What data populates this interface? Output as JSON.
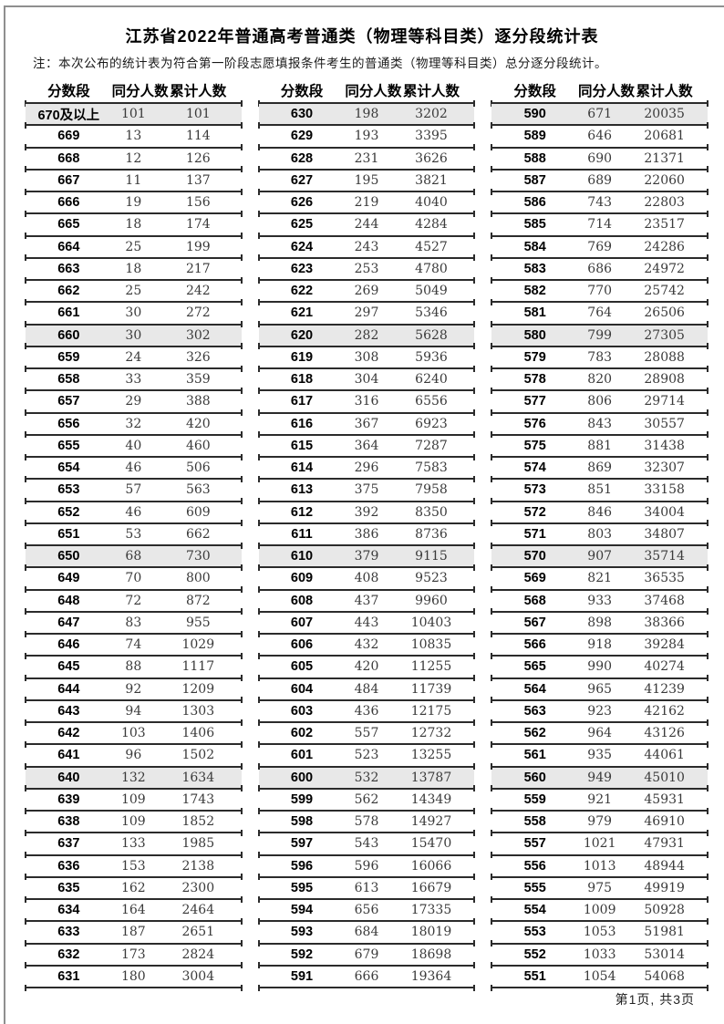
{
  "page": {
    "title": "江苏省2022年普通高考普通类（物理等科目类）逐分段统计表",
    "note": "注：本次公布的统计表为符合第一阶段志愿填报条件考生的普通类（物理等科目类）总分逐分段统计。",
    "footer": "第1页, 共3页"
  },
  "columns": [
    "分数段",
    "同分人数",
    "累计人数"
  ],
  "tables": [
    {
      "rows": [
        [
          "670及以上",
          "101",
          "101"
        ],
        [
          "669",
          "13",
          "114"
        ],
        [
          "668",
          "12",
          "126"
        ],
        [
          "667",
          "11",
          "137"
        ],
        [
          "666",
          "19",
          "156"
        ],
        [
          "665",
          "18",
          "174"
        ],
        [
          "664",
          "25",
          "199"
        ],
        [
          "663",
          "18",
          "217"
        ],
        [
          "662",
          "25",
          "242"
        ],
        [
          "661",
          "30",
          "272"
        ],
        [
          "660",
          "30",
          "302"
        ],
        [
          "659",
          "24",
          "326"
        ],
        [
          "658",
          "33",
          "359"
        ],
        [
          "657",
          "29",
          "388"
        ],
        [
          "656",
          "32",
          "420"
        ],
        [
          "655",
          "40",
          "460"
        ],
        [
          "654",
          "46",
          "506"
        ],
        [
          "653",
          "57",
          "563"
        ],
        [
          "652",
          "46",
          "609"
        ],
        [
          "651",
          "53",
          "662"
        ],
        [
          "650",
          "68",
          "730"
        ],
        [
          "649",
          "70",
          "800"
        ],
        [
          "648",
          "72",
          "872"
        ],
        [
          "647",
          "83",
          "955"
        ],
        [
          "646",
          "74",
          "1029"
        ],
        [
          "645",
          "88",
          "1117"
        ],
        [
          "644",
          "92",
          "1209"
        ],
        [
          "643",
          "94",
          "1303"
        ],
        [
          "642",
          "103",
          "1406"
        ],
        [
          "641",
          "96",
          "1502"
        ],
        [
          "640",
          "132",
          "1634"
        ],
        [
          "639",
          "109",
          "1743"
        ],
        [
          "638",
          "109",
          "1852"
        ],
        [
          "637",
          "133",
          "1985"
        ],
        [
          "636",
          "153",
          "2138"
        ],
        [
          "635",
          "162",
          "2300"
        ],
        [
          "634",
          "164",
          "2464"
        ],
        [
          "633",
          "187",
          "2651"
        ],
        [
          "632",
          "173",
          "2824"
        ],
        [
          "631",
          "180",
          "3004"
        ]
      ]
    },
    {
      "rows": [
        [
          "630",
          "198",
          "3202"
        ],
        [
          "629",
          "193",
          "3395"
        ],
        [
          "628",
          "231",
          "3626"
        ],
        [
          "627",
          "195",
          "3821"
        ],
        [
          "626",
          "219",
          "4040"
        ],
        [
          "625",
          "244",
          "4284"
        ],
        [
          "624",
          "243",
          "4527"
        ],
        [
          "623",
          "253",
          "4780"
        ],
        [
          "622",
          "269",
          "5049"
        ],
        [
          "621",
          "297",
          "5346"
        ],
        [
          "620",
          "282",
          "5628"
        ],
        [
          "619",
          "308",
          "5936"
        ],
        [
          "618",
          "304",
          "6240"
        ],
        [
          "617",
          "316",
          "6556"
        ],
        [
          "616",
          "367",
          "6923"
        ],
        [
          "615",
          "364",
          "7287"
        ],
        [
          "614",
          "296",
          "7583"
        ],
        [
          "613",
          "375",
          "7958"
        ],
        [
          "612",
          "392",
          "8350"
        ],
        [
          "611",
          "386",
          "8736"
        ],
        [
          "610",
          "379",
          "9115"
        ],
        [
          "609",
          "408",
          "9523"
        ],
        [
          "608",
          "437",
          "9960"
        ],
        [
          "607",
          "443",
          "10403"
        ],
        [
          "606",
          "432",
          "10835"
        ],
        [
          "605",
          "420",
          "11255"
        ],
        [
          "604",
          "484",
          "11739"
        ],
        [
          "603",
          "436",
          "12175"
        ],
        [
          "602",
          "557",
          "12732"
        ],
        [
          "601",
          "523",
          "13255"
        ],
        [
          "600",
          "532",
          "13787"
        ],
        [
          "599",
          "562",
          "14349"
        ],
        [
          "598",
          "578",
          "14927"
        ],
        [
          "597",
          "543",
          "15470"
        ],
        [
          "596",
          "596",
          "16066"
        ],
        [
          "595",
          "613",
          "16679"
        ],
        [
          "594",
          "656",
          "17335"
        ],
        [
          "593",
          "684",
          "18019"
        ],
        [
          "592",
          "679",
          "18698"
        ],
        [
          "591",
          "666",
          "19364"
        ]
      ]
    },
    {
      "rows": [
        [
          "590",
          "671",
          "20035"
        ],
        [
          "589",
          "646",
          "20681"
        ],
        [
          "588",
          "690",
          "21371"
        ],
        [
          "587",
          "689",
          "22060"
        ],
        [
          "586",
          "743",
          "22803"
        ],
        [
          "585",
          "714",
          "23517"
        ],
        [
          "584",
          "769",
          "24286"
        ],
        [
          "583",
          "686",
          "24972"
        ],
        [
          "582",
          "770",
          "25742"
        ],
        [
          "581",
          "764",
          "26506"
        ],
        [
          "580",
          "799",
          "27305"
        ],
        [
          "579",
          "783",
          "28088"
        ],
        [
          "578",
          "820",
          "28908"
        ],
        [
          "577",
          "806",
          "29714"
        ],
        [
          "576",
          "843",
          "30557"
        ],
        [
          "575",
          "881",
          "31438"
        ],
        [
          "574",
          "869",
          "32307"
        ],
        [
          "573",
          "851",
          "33158"
        ],
        [
          "572",
          "846",
          "34004"
        ],
        [
          "571",
          "803",
          "34807"
        ],
        [
          "570",
          "907",
          "35714"
        ],
        [
          "569",
          "821",
          "36535"
        ],
        [
          "568",
          "933",
          "37468"
        ],
        [
          "567",
          "898",
          "38366"
        ],
        [
          "566",
          "918",
          "39284"
        ],
        [
          "565",
          "990",
          "40274"
        ],
        [
          "564",
          "965",
          "41239"
        ],
        [
          "563",
          "923",
          "42162"
        ],
        [
          "562",
          "964",
          "43126"
        ],
        [
          "561",
          "935",
          "44061"
        ],
        [
          "560",
          "949",
          "45010"
        ],
        [
          "559",
          "921",
          "45931"
        ],
        [
          "558",
          "979",
          "46910"
        ],
        [
          "557",
          "1021",
          "47931"
        ],
        [
          "556",
          "1013",
          "48944"
        ],
        [
          "555",
          "975",
          "49919"
        ],
        [
          "554",
          "1009",
          "50928"
        ],
        [
          "553",
          "1053",
          "51981"
        ],
        [
          "552",
          "1033",
          "53014"
        ],
        [
          "551",
          "1054",
          "54068"
        ]
      ]
    }
  ]
}
